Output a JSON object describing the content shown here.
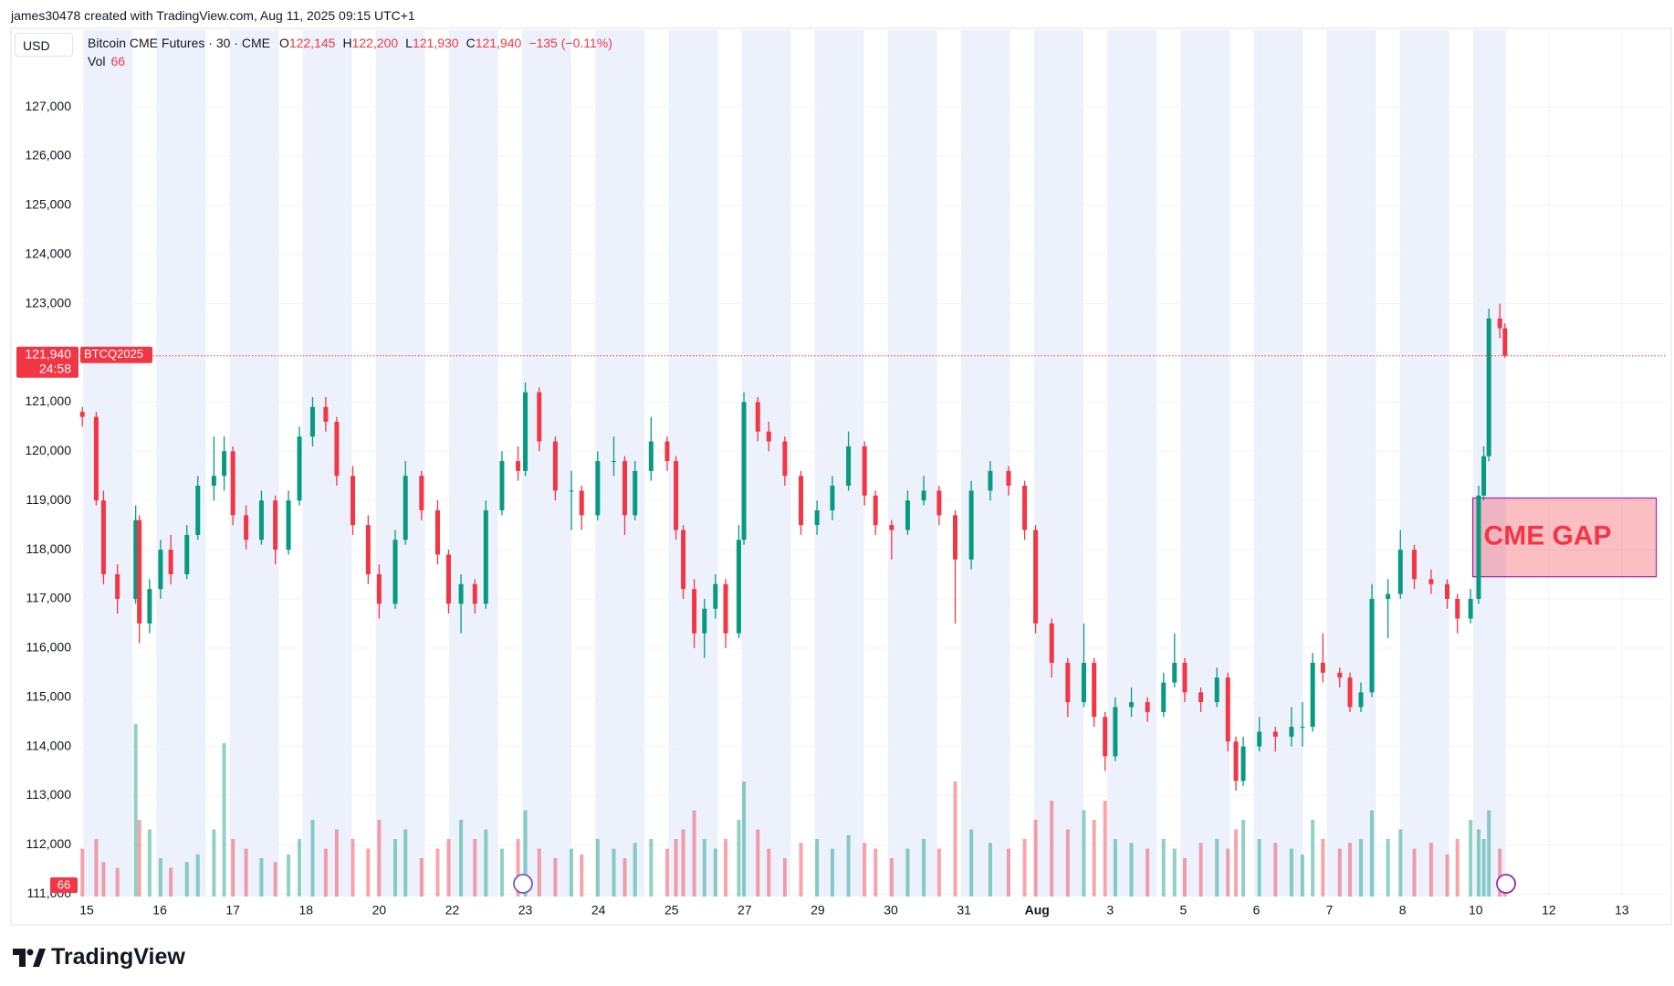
{
  "chart_data": {
    "type": "candlestick",
    "credit": "james30478 created with TradingView.com, Aug 11, 2025 09:15 UTC+1",
    "currency": "USD",
    "legend": {
      "symbol": "Bitcoin CME Futures · 30 · CME",
      "open_label": "O",
      "open": "122,145",
      "high_label": "H",
      "high": "122,200",
      "low_label": "L",
      "low": "121,930",
      "close_label": "C",
      "close": "121,940",
      "change": "−135 (−0.11%)",
      "volume_label": "Vol",
      "volume": "66"
    },
    "last_price": {
      "value": 121940,
      "label": "121,940",
      "countdown": "24:58",
      "symbol": "BTCQ2025"
    },
    "volume_badge": "66",
    "brand": "TradingView",
    "up_color": "#089981",
    "down_color": "#f23645",
    "grid": true,
    "ylim": [
      110950,
      128560
    ],
    "yticks": [
      {
        "value": 111000,
        "label": "111,000"
      },
      {
        "value": 112000,
        "label": "112,000"
      },
      {
        "value": 113000,
        "label": "113,000"
      },
      {
        "value": 114000,
        "label": "114,000"
      },
      {
        "value": 115000,
        "label": "115,000"
      },
      {
        "value": 116000,
        "label": "116,000"
      },
      {
        "value": 117000,
        "label": "117,000"
      },
      {
        "value": 118000,
        "label": "118,000"
      },
      {
        "value": 119000,
        "label": "119,000"
      },
      {
        "value": 120000,
        "label": "120,000"
      },
      {
        "value": 121000,
        "label": "121,000"
      },
      {
        "value": 122000,
        "label": "122,000"
      },
      {
        "value": 123000,
        "label": "123,000"
      },
      {
        "value": 124000,
        "label": "124,000"
      },
      {
        "value": 125000,
        "label": "125,000"
      },
      {
        "value": 126000,
        "label": "126,000"
      },
      {
        "value": 127000,
        "label": "127,000"
      }
    ],
    "xlim": [
      -0.1,
      21.6
    ],
    "xticks": [
      {
        "value": 0,
        "label": "15"
      },
      {
        "value": 1,
        "label": "16"
      },
      {
        "value": 2,
        "label": "17"
      },
      {
        "value": 3,
        "label": "18"
      },
      {
        "value": 4,
        "label": "20"
      },
      {
        "value": 5,
        "label": "22"
      },
      {
        "value": 6,
        "label": "23"
      },
      {
        "value": 7,
        "label": "24"
      },
      {
        "value": 8,
        "label": "25"
      },
      {
        "value": 9,
        "label": "27"
      },
      {
        "value": 10,
        "label": "29"
      },
      {
        "value": 11,
        "label": "30"
      },
      {
        "value": 12,
        "label": "31"
      },
      {
        "value": 13,
        "label": "Aug"
      },
      {
        "value": 14,
        "label": "3"
      },
      {
        "value": 15,
        "label": "5"
      },
      {
        "value": 16,
        "label": "6"
      },
      {
        "value": 17,
        "label": "7"
      },
      {
        "value": 18,
        "label": "8"
      },
      {
        "value": 19,
        "label": "10"
      },
      {
        "value": 20,
        "label": "12"
      },
      {
        "value": 21,
        "label": "13"
      }
    ],
    "x": [
      -0.06,
      0.13,
      0.23,
      0.42,
      0.67,
      0.72,
      0.86,
      1.01,
      1.15,
      1.37,
      1.52,
      1.74,
      1.88,
      2.0,
      2.18,
      2.39,
      2.58,
      2.76,
      2.91,
      3.09,
      3.27,
      3.42,
      3.64,
      3.85,
      4.0,
      4.22,
      4.36,
      4.58,
      4.8,
      4.95,
      5.12,
      5.31,
      5.46,
      5.68,
      5.9,
      6.0,
      6.19,
      6.41,
      6.63,
      6.77,
      6.99,
      7.21,
      7.36,
      7.5,
      7.72,
      7.94,
      8.06,
      8.16,
      8.31,
      8.45,
      8.6,
      8.74,
      8.92,
      8.99,
      9.18,
      9.33,
      9.55,
      9.77,
      9.99,
      10.2,
      10.42,
      10.64,
      10.79,
      11.01,
      11.23,
      11.45,
      11.66,
      11.88,
      12.1,
      12.36,
      12.61,
      12.83,
      12.98,
      13.2,
      13.42,
      13.64,
      13.78,
      13.93,
      14.07,
      14.29,
      14.51,
      14.73,
      14.88,
      15.02,
      15.24,
      15.46,
      15.61,
      15.72,
      15.82,
      16.04,
      16.26,
      16.48,
      16.63,
      16.77,
      16.91,
      17.14,
      17.28,
      17.43,
      17.58,
      17.8,
      17.97,
      18.16,
      18.39,
      18.61,
      18.75,
      18.93,
      19.04,
      19.11,
      19.18,
      19.33,
      19.4
    ],
    "candles": [
      [
        120800,
        120900,
        120500,
        120700
      ],
      [
        120700,
        120800,
        118900,
        119000
      ],
      [
        119000,
        119200,
        117300,
        117500
      ],
      [
        117500,
        117700,
        116700,
        117000
      ],
      [
        117000,
        118900,
        116900,
        118600
      ],
      [
        118600,
        118700,
        116100,
        116500
      ],
      [
        116500,
        117400,
        116300,
        117200
      ],
      [
        117200,
        118200,
        117000,
        118000
      ],
      [
        118000,
        118300,
        117300,
        117500
      ],
      [
        117500,
        118500,
        117400,
        118300
      ],
      [
        118300,
        119500,
        118200,
        119300
      ],
      [
        119300,
        120300,
        119000,
        119500
      ],
      [
        119500,
        120300,
        119200,
        120000
      ],
      [
        120000,
        120100,
        118500,
        118700
      ],
      [
        118700,
        118900,
        118000,
        118200
      ],
      [
        118200,
        119200,
        118100,
        119000
      ],
      [
        119000,
        119100,
        117700,
        118000
      ],
      [
        118000,
        119200,
        117900,
        119000
      ],
      [
        119000,
        120500,
        118900,
        120300
      ],
      [
        120300,
        121100,
        120100,
        120900
      ],
      [
        120900,
        121100,
        120400,
        120600
      ],
      [
        120600,
        120700,
        119300,
        119500
      ],
      [
        119500,
        119700,
        118300,
        118500
      ],
      [
        118500,
        118700,
        117300,
        117500
      ],
      [
        117500,
        117700,
        116600,
        116900
      ],
      [
        116900,
        118400,
        116800,
        118200
      ],
      [
        118200,
        119800,
        118100,
        119500
      ],
      [
        119500,
        119600,
        118600,
        118800
      ],
      [
        118800,
        119000,
        117700,
        117900
      ],
      [
        117900,
        118000,
        116700,
        116900
      ],
      [
        116900,
        117500,
        116300,
        117300
      ],
      [
        117300,
        117400,
        116700,
        116900
      ],
      [
        116900,
        119000,
        116800,
        118800
      ],
      [
        118800,
        120000,
        118700,
        119800
      ],
      [
        119800,
        120100,
        119400,
        119600
      ],
      [
        119600,
        121400,
        119500,
        121200
      ],
      [
        121200,
        121300,
        120000,
        120200
      ],
      [
        120200,
        120300,
        119000,
        119200
      ],
      [
        119200,
        119600,
        118400,
        119200
      ],
      [
        119200,
        119300,
        118400,
        118700
      ],
      [
        118700,
        120000,
        118600,
        119800
      ],
      [
        119800,
        120300,
        119500,
        119800
      ],
      [
        119800,
        119900,
        118300,
        118700
      ],
      [
        118700,
        119800,
        118600,
        119600
      ],
      [
        119600,
        120700,
        119400,
        120200
      ],
      [
        120200,
        120300,
        119600,
        119800
      ],
      [
        119800,
        119900,
        118200,
        118400
      ],
      [
        118400,
        118500,
        117000,
        117200
      ],
      [
        117200,
        117400,
        116000,
        116300
      ],
      [
        116300,
        117000,
        115800,
        116800
      ],
      [
        116800,
        117500,
        116600,
        117300
      ],
      [
        117300,
        117400,
        116000,
        116300
      ],
      [
        116300,
        118500,
        116200,
        118200
      ],
      [
        118200,
        121200,
        118100,
        121000
      ],
      [
        121000,
        121100,
        120200,
        120400
      ],
      [
        120400,
        120600,
        120000,
        120200
      ],
      [
        120200,
        120300,
        119300,
        119500
      ],
      [
        119500,
        119600,
        118300,
        118500
      ],
      [
        118500,
        119000,
        118300,
        118800
      ],
      [
        118800,
        119500,
        118600,
        119300
      ],
      [
        119300,
        120400,
        119200,
        120100
      ],
      [
        120100,
        120200,
        118900,
        119100
      ],
      [
        119100,
        119200,
        118300,
        118500
      ],
      [
        118500,
        118600,
        117800,
        118400
      ],
      [
        118400,
        119200,
        118300,
        119000
      ],
      [
        119000,
        119500,
        118900,
        119200
      ],
      [
        119200,
        119300,
        118500,
        118700
      ],
      [
        118700,
        118800,
        116500,
        117800
      ],
      [
        117800,
        119400,
        117600,
        119200
      ],
      [
        119200,
        119800,
        119000,
        119600
      ],
      [
        119600,
        119700,
        119100,
        119300
      ],
      [
        119300,
        119400,
        118200,
        118400
      ],
      [
        118400,
        118500,
        116300,
        116500
      ],
      [
        116500,
        116600,
        115400,
        115700
      ],
      [
        115700,
        115800,
        114600,
        114900
      ],
      [
        114900,
        116500,
        114800,
        115700
      ],
      [
        115700,
        115800,
        114400,
        114600
      ],
      [
        114600,
        114700,
        113500,
        113800
      ],
      [
        113800,
        115000,
        113700,
        114800
      ],
      [
        114800,
        115200,
        114600,
        114900
      ],
      [
        114900,
        115000,
        114500,
        114700
      ],
      [
        114700,
        115500,
        114600,
        115300
      ],
      [
        115300,
        116300,
        115200,
        115700
      ],
      [
        115700,
        115800,
        114900,
        115100
      ],
      [
        115100,
        115200,
        114700,
        114900
      ],
      [
        114900,
        115600,
        114800,
        115400
      ],
      [
        115400,
        115500,
        113900,
        114100
      ],
      [
        114100,
        114200,
        113100,
        113300
      ],
      [
        113300,
        114200,
        113200,
        114000
      ],
      [
        114000,
        114600,
        113900,
        114300
      ],
      [
        114300,
        114400,
        113900,
        114200
      ],
      [
        114200,
        114800,
        114000,
        114400
      ],
      [
        114400,
        114900,
        114000,
        114400
      ],
      [
        114400,
        115900,
        114300,
        115700
      ],
      [
        115700,
        116300,
        115300,
        115500
      ],
      [
        115500,
        115600,
        115200,
        115400
      ],
      [
        115400,
        115500,
        114700,
        114800
      ],
      [
        114800,
        115300,
        114700,
        115100
      ],
      [
        115100,
        117300,
        115000,
        117000
      ],
      [
        117000,
        117400,
        116200,
        117100
      ],
      [
        117100,
        118400,
        117000,
        118000
      ],
      [
        118000,
        118100,
        117200,
        117400
      ],
      [
        117400,
        117600,
        117100,
        117300
      ],
      [
        117300,
        117400,
        116800,
        117000
      ],
      [
        117000,
        117100,
        116300,
        116600
      ],
      [
        116600,
        117200,
        116500,
        117000
      ],
      [
        117000,
        119300,
        116900,
        119100
      ],
      [
        119100,
        120100,
        119000,
        119900
      ],
      [
        119900,
        122900,
        119800,
        122700
      ],
      [
        122700,
        123000,
        122300,
        122500
      ],
      [
        122500,
        122600,
        121900,
        121940
      ]
    ],
    "y2lim": [
      0,
      1000
    ],
    "volume": [
      250,
      300,
      180,
      150,
      900,
      400,
      350,
      200,
      150,
      180,
      220,
      350,
      800,
      300,
      250,
      200,
      180,
      220,
      300,
      400,
      250,
      350,
      300,
      250,
      400,
      300,
      350,
      200,
      250,
      300,
      400,
      300,
      350,
      250,
      300,
      450,
      250,
      200,
      250,
      220,
      300,
      250,
      200,
      280,
      300,
      250,
      300,
      350,
      450,
      300,
      250,
      300,
      400,
      600,
      350,
      250,
      200,
      280,
      300,
      250,
      320,
      280,
      250,
      200,
      250,
      300,
      250,
      600,
      350,
      280,
      250,
      300,
      400,
      500,
      350,
      450,
      400,
      500,
      300,
      280,
      250,
      300,
      250,
      200,
      280,
      300,
      250,
      350,
      400,
      300,
      280,
      250,
      220,
      400,
      300,
      250,
      280,
      300,
      450,
      300,
      350,
      250,
      280,
      220,
      300,
      400,
      350,
      300,
      450,
      250,
      66
    ],
    "gap": {
      "label": "CME GAP",
      "ylim": [
        117450,
        119050
      ],
      "xlim": [
        18.96,
        21.47
      ]
    }
  }
}
